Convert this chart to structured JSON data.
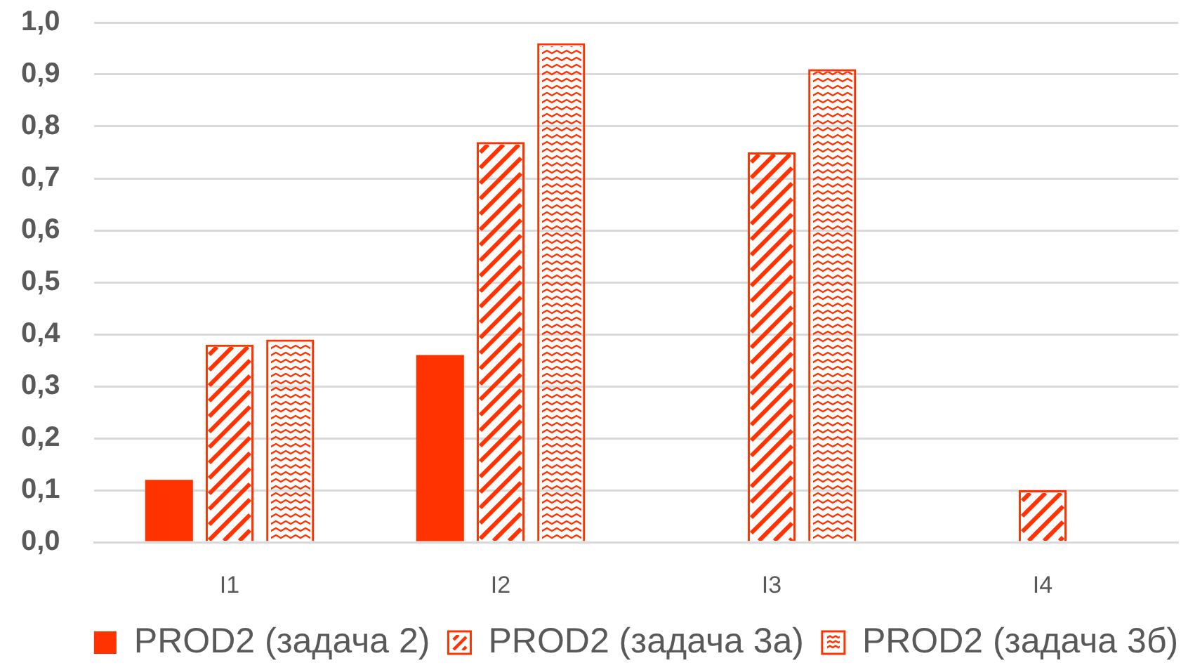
{
  "chart_data": {
    "type": "bar",
    "categories": [
      "I1",
      "I2",
      "I3",
      "I4"
    ],
    "series": [
      {
        "name": "PROD2 (задача 2)",
        "color": "#ff3300",
        "values": [
          0.12,
          0.36,
          null,
          null
        ]
      },
      {
        "name": "PROD2 (задача 3а)",
        "color": "#ff3300",
        "values": [
          0.38,
          0.77,
          0.75,
          0.1
        ]
      },
      {
        "name": "PROD2 (задача 3б)",
        "color": "#ff3300",
        "values": [
          0.39,
          0.96,
          0.91,
          null
        ]
      }
    ],
    "ylim": [
      0,
      1
    ],
    "yticks": [
      {
        "value": 0,
        "label": "0,0"
      },
      {
        "value": 0.1,
        "label": "0,1"
      },
      {
        "value": 0.2,
        "label": "0,2"
      },
      {
        "value": 0.3,
        "label": "0,3"
      },
      {
        "value": 0.4,
        "label": "0,4"
      },
      {
        "value": 0.5,
        "label": "0,5"
      },
      {
        "value": 0.6,
        "label": "0,6"
      },
      {
        "value": 0.7,
        "label": "0,7"
      },
      {
        "value": 0.8,
        "label": "0,8"
      },
      {
        "value": 0.9,
        "label": "0,9"
      },
      {
        "value": 1,
        "label": "1,0"
      }
    ],
    "grid": "y",
    "legend": "bottom"
  }
}
